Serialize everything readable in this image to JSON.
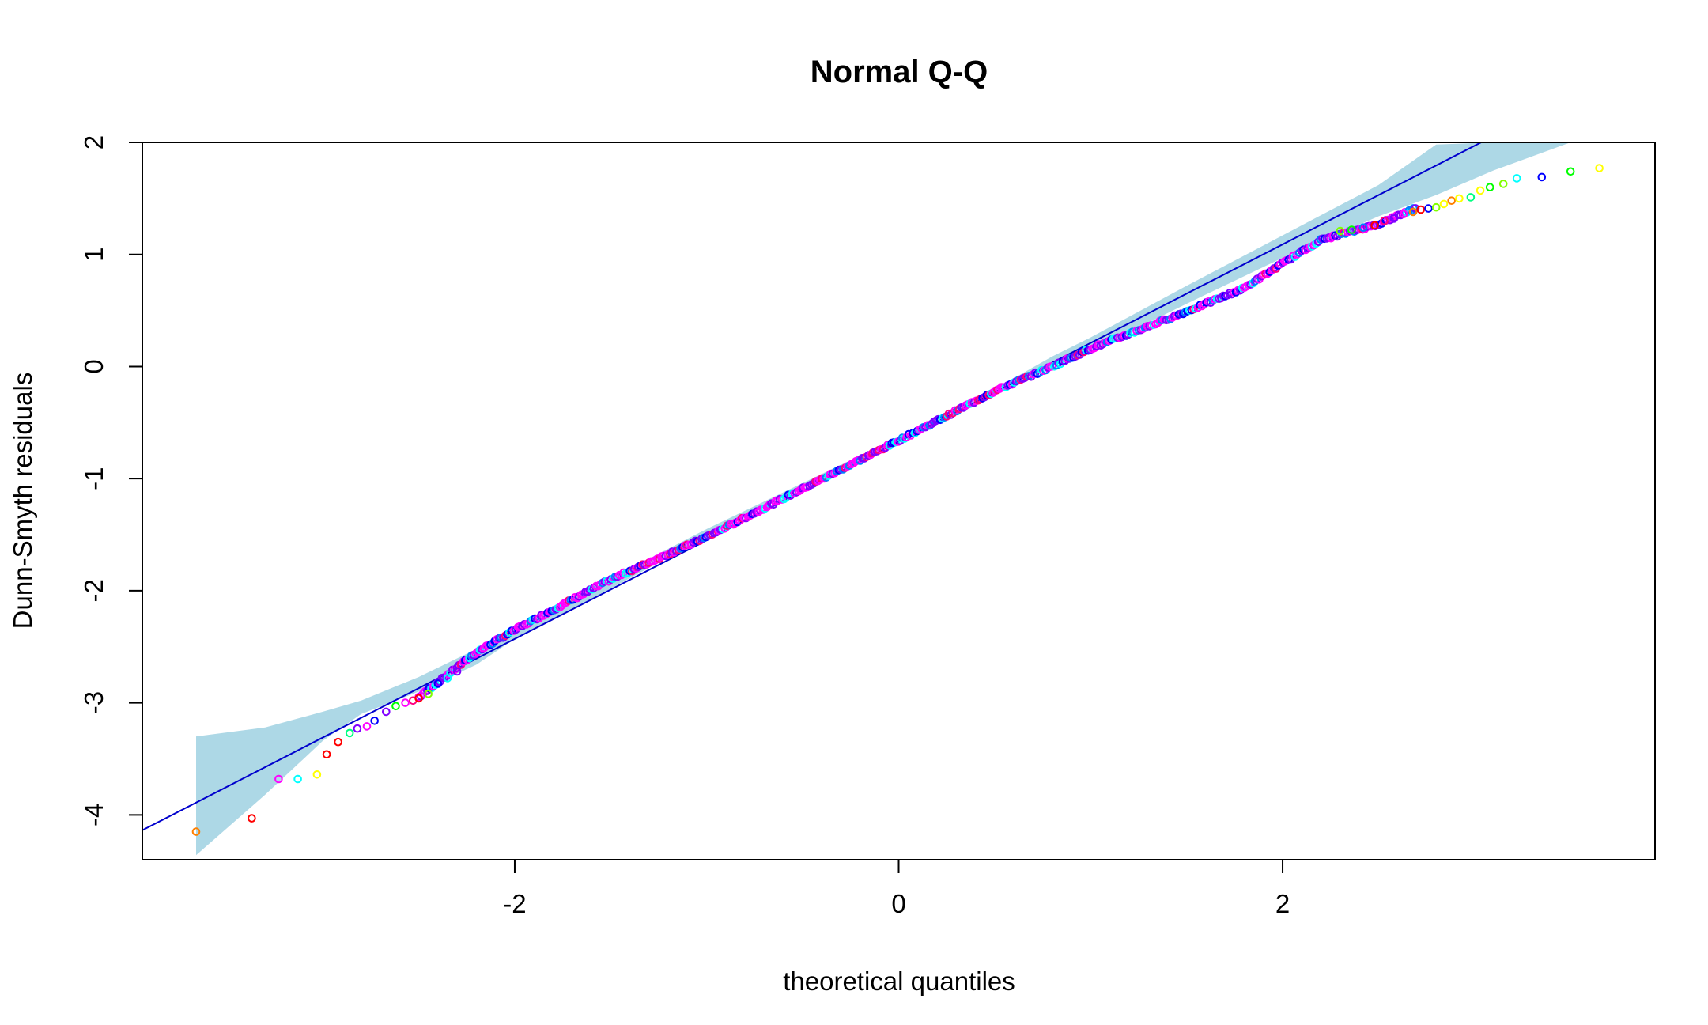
{
  "chart_data": {
    "type": "scatter",
    "title": "Normal Q-Q",
    "xlabel": "theoretical quantiles",
    "ylabel": "Dunn-Smyth residuals",
    "xlim": [
      -3.94,
      3.94
    ],
    "ylim": [
      -4.4,
      2.0
    ],
    "xticks": [
      -2,
      0,
      2
    ],
    "yticks": [
      -4,
      -3,
      -2,
      -1,
      0,
      1,
      2
    ],
    "grid": false,
    "legend": "none",
    "colors": {
      "band": "#add8e6",
      "line": "#0000cd",
      "points": [
        "#ff0000",
        "#ff8000",
        "#ffff00",
        "#80ff00",
        "#00ff00",
        "#00ff80",
        "#00ffff",
        "#0080ff",
        "#0000ff",
        "#8000ff",
        "#ff00ff",
        "#ff0080"
      ]
    },
    "reference_line": {
      "intercept": -0.67,
      "slope": 0.88
    },
    "band": {
      "x": [
        -3.66,
        -3.3,
        -3.0,
        -2.8,
        -2.5,
        -2.2,
        -2.0,
        -1.5,
        -1.0,
        -0.5,
        0.0,
        0.5,
        0.8,
        1.0,
        1.5,
        2.0,
        2.5,
        2.8,
        3.1,
        3.5
      ],
      "upper": [
        -3.3,
        -3.22,
        -3.08,
        -2.98,
        -2.77,
        -2.52,
        -2.34,
        -1.89,
        -1.45,
        -1.04,
        -0.63,
        -0.2,
        0.09,
        0.26,
        0.72,
        1.17,
        1.62,
        1.98,
        2.0,
        2.0
      ],
      "lower": [
        -4.36,
        -3.82,
        -3.34,
        -3.1,
        -2.9,
        -2.66,
        -2.43,
        -1.98,
        -1.52,
        -1.08,
        -0.68,
        -0.26,
        0.0,
        0.14,
        0.56,
        0.97,
        1.34,
        1.53,
        1.75,
        2.0
      ]
    },
    "dense_curve": {
      "x": [
        -2.5,
        -2.2,
        -2.0,
        -1.5,
        -1.0,
        -0.5,
        0.0,
        0.5,
        0.8,
        1.0,
        1.5,
        1.8,
        2.0,
        2.2,
        2.5,
        2.7
      ],
      "y": [
        -2.95,
        -2.55,
        -2.35,
        -1.9,
        -1.52,
        -1.09,
        -0.66,
        -0.22,
        0.0,
        0.16,
        0.49,
        0.7,
        0.92,
        1.13,
        1.27,
        1.42
      ]
    },
    "tail_points": [
      {
        "x": -3.66,
        "y": -4.15,
        "c": 1
      },
      {
        "x": -3.37,
        "y": -4.03,
        "c": 0
      },
      {
        "x": -3.23,
        "y": -3.68,
        "c": 10
      },
      {
        "x": -3.13,
        "y": -3.68,
        "c": 6
      },
      {
        "x": -3.03,
        "y": -3.64,
        "c": 2
      },
      {
        "x": -2.98,
        "y": -3.46,
        "c": 0
      },
      {
        "x": -2.92,
        "y": -3.35,
        "c": 0
      },
      {
        "x": -2.86,
        "y": -3.27,
        "c": 5
      },
      {
        "x": -2.82,
        "y": -3.23,
        "c": 9
      },
      {
        "x": -2.77,
        "y": -3.21,
        "c": 10
      },
      {
        "x": -2.73,
        "y": -3.16,
        "c": 8
      },
      {
        "x": -2.67,
        "y": -3.08,
        "c": 9
      },
      {
        "x": -2.62,
        "y": -3.03,
        "c": 4
      },
      {
        "x": -2.57,
        "y": -3.0,
        "c": 10
      },
      {
        "x": -2.53,
        "y": -2.98,
        "c": 11
      },
      {
        "x": -2.5,
        "y": -2.96,
        "c": 0
      },
      {
        "x": -2.45,
        "y": -2.92,
        "c": 3
      },
      {
        "x": -2.4,
        "y": -2.83,
        "c": 8
      },
      {
        "x": -2.35,
        "y": -2.78,
        "c": 6
      },
      {
        "x": -2.3,
        "y": -2.72,
        "c": 9
      },
      {
        "x": 2.3,
        "y": 1.21,
        "c": 3
      },
      {
        "x": 2.36,
        "y": 1.22,
        "c": 4
      },
      {
        "x": 2.42,
        "y": 1.24,
        "c": 7
      },
      {
        "x": 2.48,
        "y": 1.26,
        "c": 0
      },
      {
        "x": 2.53,
        "y": 1.3,
        "c": 11
      },
      {
        "x": 2.58,
        "y": 1.32,
        "c": 9
      },
      {
        "x": 2.63,
        "y": 1.36,
        "c": 10
      },
      {
        "x": 2.68,
        "y": 1.38,
        "c": 1
      },
      {
        "x": 2.72,
        "y": 1.4,
        "c": 0
      },
      {
        "x": 2.76,
        "y": 1.41,
        "c": 8
      },
      {
        "x": 2.8,
        "y": 1.42,
        "c": 3
      },
      {
        "x": 2.84,
        "y": 1.45,
        "c": 2
      },
      {
        "x": 2.88,
        "y": 1.48,
        "c": 1
      },
      {
        "x": 2.92,
        "y": 1.5,
        "c": 2
      },
      {
        "x": 2.98,
        "y": 1.51,
        "c": 5
      },
      {
        "x": 3.03,
        "y": 1.57,
        "c": 2
      },
      {
        "x": 3.08,
        "y": 1.6,
        "c": 4
      },
      {
        "x": 3.15,
        "y": 1.63,
        "c": 3
      },
      {
        "x": 3.22,
        "y": 1.68,
        "c": 6
      },
      {
        "x": 3.35,
        "y": 1.69,
        "c": 8
      },
      {
        "x": 3.5,
        "y": 1.74,
        "c": 4
      },
      {
        "x": 3.65,
        "y": 1.77,
        "c": 2
      }
    ]
  }
}
